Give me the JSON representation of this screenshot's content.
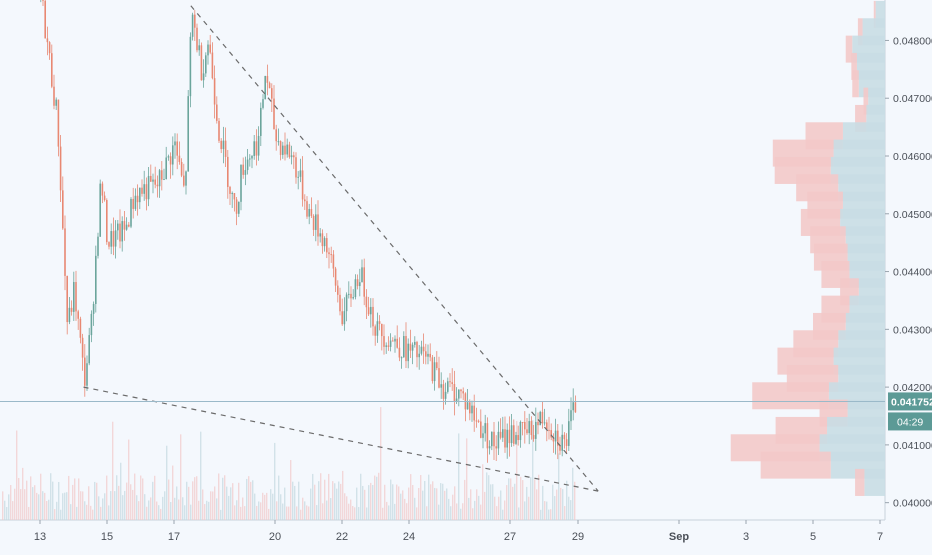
{
  "chart_data": {
    "type": "candlestick",
    "title": "",
    "xlabel": "",
    "ylabel": "",
    "x_ticks": [
      "13",
      "15",
      "17",
      "20",
      "22",
      "24",
      "27",
      "29",
      "Sep",
      "3",
      "5",
      "7"
    ],
    "y_ticks": [
      "0.040000",
      "0.041000",
      "0.042000",
      "0.043000",
      "0.044000",
      "0.045000",
      "0.046000",
      "0.047000",
      "0.048000"
    ],
    "ylim": [
      0.0397,
      0.0487
    ],
    "last_price": "0.041752",
    "countdown": "04:29",
    "price_path": [
      [
        "13",
        0.0488
      ],
      [
        "13.5",
        0.0466
      ],
      [
        "13.8",
        0.043
      ],
      [
        "14",
        0.0437
      ],
      [
        "14.3",
        0.0421
      ],
      [
        "14.5",
        0.043
      ],
      [
        "14.8",
        0.0456
      ],
      [
        "15",
        0.0445
      ],
      [
        "15.5",
        0.0447
      ],
      [
        "15.8",
        0.0453
      ],
      [
        "16",
        0.0454
      ],
      [
        "16.5",
        0.0455
      ],
      [
        "17",
        0.0462
      ],
      [
        "17.3",
        0.0453
      ],
      [
        "17.5",
        0.0485
      ],
      [
        "17.8",
        0.0475
      ],
      [
        "18",
        0.048
      ],
      [
        "18.3",
        0.0465
      ],
      [
        "18.8",
        0.045
      ],
      [
        "19",
        0.0458
      ],
      [
        "19.5",
        0.0463
      ],
      [
        "19.7",
        0.0475
      ],
      [
        "20",
        0.0463
      ],
      [
        "20.5",
        0.046
      ],
      [
        "21",
        0.045
      ],
      [
        "21.5",
        0.0445
      ],
      [
        "22",
        0.0432
      ],
      [
        "22.5",
        0.044
      ],
      [
        "23",
        0.043
      ],
      [
        "23.5",
        0.0428
      ],
      [
        "24",
        0.0426
      ],
      [
        "24.5",
        0.0425
      ],
      [
        "25",
        0.042
      ],
      [
        "25.5",
        0.0419
      ],
      [
        "26",
        0.0414
      ],
      [
        "26.5",
        0.041
      ],
      [
        "27",
        0.0412
      ],
      [
        "27.5",
        0.0412
      ],
      [
        "28",
        0.0415
      ],
      [
        "28.3",
        0.0412
      ],
      [
        "28.6",
        0.041
      ],
      [
        "28.9",
        0.0417
      ]
    ],
    "volume_profile": [
      [
        0.04845,
        0.1,
        0.02
      ],
      [
        0.04815,
        0.24,
        0.05
      ],
      [
        0.04785,
        0.35,
        0.07
      ],
      [
        0.04755,
        0.3,
        0.06
      ],
      [
        0.04725,
        0.28,
        0.07
      ],
      [
        0.04695,
        0.18,
        0.05
      ],
      [
        0.04665,
        0.2,
        0.12
      ],
      [
        0.04635,
        0.45,
        0.4
      ],
      [
        0.04605,
        0.55,
        0.65
      ],
      [
        0.04575,
        0.58,
        0.6
      ],
      [
        0.04545,
        0.5,
        0.45
      ],
      [
        0.04515,
        0.45,
        0.38
      ],
      [
        0.04485,
        0.48,
        0.42
      ],
      [
        0.04455,
        0.42,
        0.38
      ],
      [
        0.04425,
        0.4,
        0.36
      ],
      [
        0.04395,
        0.38,
        0.3
      ],
      [
        0.04365,
        0.28,
        0.2
      ],
      [
        0.04335,
        0.38,
        0.3
      ],
      [
        0.04305,
        0.42,
        0.35
      ],
      [
        0.04275,
        0.5,
        0.48
      ],
      [
        0.04245,
        0.55,
        0.6
      ],
      [
        0.04215,
        0.5,
        0.55
      ],
      [
        0.04185,
        0.6,
        0.82
      ],
      [
        0.04155,
        0.4,
        0.3
      ],
      [
        0.04125,
        0.62,
        0.55
      ],
      [
        0.04095,
        0.7,
        0.95
      ],
      [
        0.04065,
        0.58,
        0.75
      ],
      [
        0.04035,
        0.22,
        0.1
      ]
    ],
    "trendlines": [
      {
        "from": [
          "17.5",
          0.0486
        ],
        "to": [
          "29.6",
          0.0402
        ]
      },
      {
        "from": [
          "14.3",
          0.042
        ],
        "to": [
          "29.6",
          0.0402
        ]
      }
    ]
  },
  "colors": {
    "background": "#f4f8fd",
    "up": "#6ba59c",
    "down": "#e88872",
    "volume_up": "#c7dbe2",
    "volume_down": "#f2cccc",
    "profile_up": "#c9dde4",
    "profile_down": "#f3c9c9",
    "trendline": "#6b6b6b",
    "price_label_bg": "#5c9a96",
    "axis_text": "#4a4f57",
    "price_line": "#9ab9c9"
  }
}
